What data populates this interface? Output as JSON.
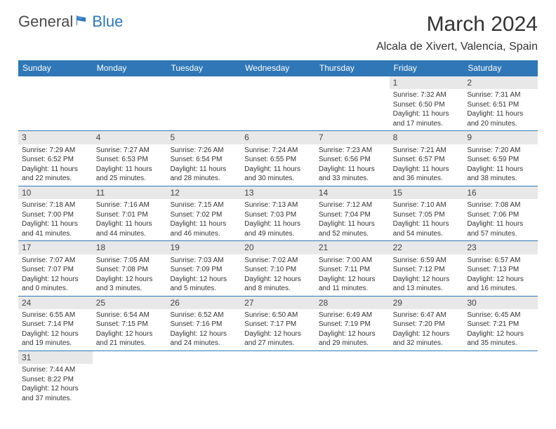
{
  "logo": {
    "general": "General",
    "blue": "Blue"
  },
  "title": "March 2024",
  "location": "Alcala de Xivert, Valencia, Spain",
  "colors": {
    "header_bg": "#2f77b6",
    "header_text": "#ffffff",
    "daynum_bg": "#e8e8e8",
    "week_border": "#2f77b6",
    "body_bg": "#ffffff",
    "text": "#333333"
  },
  "weekdays": [
    "Sunday",
    "Monday",
    "Tuesday",
    "Wednesday",
    "Thursday",
    "Friday",
    "Saturday"
  ],
  "weeks": [
    [
      {
        "n": "",
        "sr": "",
        "ss": "",
        "dl1": "",
        "dl2": ""
      },
      {
        "n": "",
        "sr": "",
        "ss": "",
        "dl1": "",
        "dl2": ""
      },
      {
        "n": "",
        "sr": "",
        "ss": "",
        "dl1": "",
        "dl2": ""
      },
      {
        "n": "",
        "sr": "",
        "ss": "",
        "dl1": "",
        "dl2": ""
      },
      {
        "n": "",
        "sr": "",
        "ss": "",
        "dl1": "",
        "dl2": ""
      },
      {
        "n": "1",
        "sr": "Sunrise: 7:32 AM",
        "ss": "Sunset: 6:50 PM",
        "dl1": "Daylight: 11 hours",
        "dl2": "and 17 minutes."
      },
      {
        "n": "2",
        "sr": "Sunrise: 7:31 AM",
        "ss": "Sunset: 6:51 PM",
        "dl1": "Daylight: 11 hours",
        "dl2": "and 20 minutes."
      }
    ],
    [
      {
        "n": "3",
        "sr": "Sunrise: 7:29 AM",
        "ss": "Sunset: 6:52 PM",
        "dl1": "Daylight: 11 hours",
        "dl2": "and 22 minutes."
      },
      {
        "n": "4",
        "sr": "Sunrise: 7:27 AM",
        "ss": "Sunset: 6:53 PM",
        "dl1": "Daylight: 11 hours",
        "dl2": "and 25 minutes."
      },
      {
        "n": "5",
        "sr": "Sunrise: 7:26 AM",
        "ss": "Sunset: 6:54 PM",
        "dl1": "Daylight: 11 hours",
        "dl2": "and 28 minutes."
      },
      {
        "n": "6",
        "sr": "Sunrise: 7:24 AM",
        "ss": "Sunset: 6:55 PM",
        "dl1": "Daylight: 11 hours",
        "dl2": "and 30 minutes."
      },
      {
        "n": "7",
        "sr": "Sunrise: 7:23 AM",
        "ss": "Sunset: 6:56 PM",
        "dl1": "Daylight: 11 hours",
        "dl2": "and 33 minutes."
      },
      {
        "n": "8",
        "sr": "Sunrise: 7:21 AM",
        "ss": "Sunset: 6:57 PM",
        "dl1": "Daylight: 11 hours",
        "dl2": "and 36 minutes."
      },
      {
        "n": "9",
        "sr": "Sunrise: 7:20 AM",
        "ss": "Sunset: 6:59 PM",
        "dl1": "Daylight: 11 hours",
        "dl2": "and 38 minutes."
      }
    ],
    [
      {
        "n": "10",
        "sr": "Sunrise: 7:18 AM",
        "ss": "Sunset: 7:00 PM",
        "dl1": "Daylight: 11 hours",
        "dl2": "and 41 minutes."
      },
      {
        "n": "11",
        "sr": "Sunrise: 7:16 AM",
        "ss": "Sunset: 7:01 PM",
        "dl1": "Daylight: 11 hours",
        "dl2": "and 44 minutes."
      },
      {
        "n": "12",
        "sr": "Sunrise: 7:15 AM",
        "ss": "Sunset: 7:02 PM",
        "dl1": "Daylight: 11 hours",
        "dl2": "and 46 minutes."
      },
      {
        "n": "13",
        "sr": "Sunrise: 7:13 AM",
        "ss": "Sunset: 7:03 PM",
        "dl1": "Daylight: 11 hours",
        "dl2": "and 49 minutes."
      },
      {
        "n": "14",
        "sr": "Sunrise: 7:12 AM",
        "ss": "Sunset: 7:04 PM",
        "dl1": "Daylight: 11 hours",
        "dl2": "and 52 minutes."
      },
      {
        "n": "15",
        "sr": "Sunrise: 7:10 AM",
        "ss": "Sunset: 7:05 PM",
        "dl1": "Daylight: 11 hours",
        "dl2": "and 54 minutes."
      },
      {
        "n": "16",
        "sr": "Sunrise: 7:08 AM",
        "ss": "Sunset: 7:06 PM",
        "dl1": "Daylight: 11 hours",
        "dl2": "and 57 minutes."
      }
    ],
    [
      {
        "n": "17",
        "sr": "Sunrise: 7:07 AM",
        "ss": "Sunset: 7:07 PM",
        "dl1": "Daylight: 12 hours",
        "dl2": "and 0 minutes."
      },
      {
        "n": "18",
        "sr": "Sunrise: 7:05 AM",
        "ss": "Sunset: 7:08 PM",
        "dl1": "Daylight: 12 hours",
        "dl2": "and 3 minutes."
      },
      {
        "n": "19",
        "sr": "Sunrise: 7:03 AM",
        "ss": "Sunset: 7:09 PM",
        "dl1": "Daylight: 12 hours",
        "dl2": "and 5 minutes."
      },
      {
        "n": "20",
        "sr": "Sunrise: 7:02 AM",
        "ss": "Sunset: 7:10 PM",
        "dl1": "Daylight: 12 hours",
        "dl2": "and 8 minutes."
      },
      {
        "n": "21",
        "sr": "Sunrise: 7:00 AM",
        "ss": "Sunset: 7:11 PM",
        "dl1": "Daylight: 12 hours",
        "dl2": "and 11 minutes."
      },
      {
        "n": "22",
        "sr": "Sunrise: 6:59 AM",
        "ss": "Sunset: 7:12 PM",
        "dl1": "Daylight: 12 hours",
        "dl2": "and 13 minutes."
      },
      {
        "n": "23",
        "sr": "Sunrise: 6:57 AM",
        "ss": "Sunset: 7:13 PM",
        "dl1": "Daylight: 12 hours",
        "dl2": "and 16 minutes."
      }
    ],
    [
      {
        "n": "24",
        "sr": "Sunrise: 6:55 AM",
        "ss": "Sunset: 7:14 PM",
        "dl1": "Daylight: 12 hours",
        "dl2": "and 19 minutes."
      },
      {
        "n": "25",
        "sr": "Sunrise: 6:54 AM",
        "ss": "Sunset: 7:15 PM",
        "dl1": "Daylight: 12 hours",
        "dl2": "and 21 minutes."
      },
      {
        "n": "26",
        "sr": "Sunrise: 6:52 AM",
        "ss": "Sunset: 7:16 PM",
        "dl1": "Daylight: 12 hours",
        "dl2": "and 24 minutes."
      },
      {
        "n": "27",
        "sr": "Sunrise: 6:50 AM",
        "ss": "Sunset: 7:17 PM",
        "dl1": "Daylight: 12 hours",
        "dl2": "and 27 minutes."
      },
      {
        "n": "28",
        "sr": "Sunrise: 6:49 AM",
        "ss": "Sunset: 7:19 PM",
        "dl1": "Daylight: 12 hours",
        "dl2": "and 29 minutes."
      },
      {
        "n": "29",
        "sr": "Sunrise: 6:47 AM",
        "ss": "Sunset: 7:20 PM",
        "dl1": "Daylight: 12 hours",
        "dl2": "and 32 minutes."
      },
      {
        "n": "30",
        "sr": "Sunrise: 6:45 AM",
        "ss": "Sunset: 7:21 PM",
        "dl1": "Daylight: 12 hours",
        "dl2": "and 35 minutes."
      }
    ],
    [
      {
        "n": "31",
        "sr": "Sunrise: 7:44 AM",
        "ss": "Sunset: 8:22 PM",
        "dl1": "Daylight: 12 hours",
        "dl2": "and 37 minutes."
      },
      {
        "n": "",
        "sr": "",
        "ss": "",
        "dl1": "",
        "dl2": ""
      },
      {
        "n": "",
        "sr": "",
        "ss": "",
        "dl1": "",
        "dl2": ""
      },
      {
        "n": "",
        "sr": "",
        "ss": "",
        "dl1": "",
        "dl2": ""
      },
      {
        "n": "",
        "sr": "",
        "ss": "",
        "dl1": "",
        "dl2": ""
      },
      {
        "n": "",
        "sr": "",
        "ss": "",
        "dl1": "",
        "dl2": ""
      },
      {
        "n": "",
        "sr": "",
        "ss": "",
        "dl1": "",
        "dl2": ""
      }
    ]
  ]
}
